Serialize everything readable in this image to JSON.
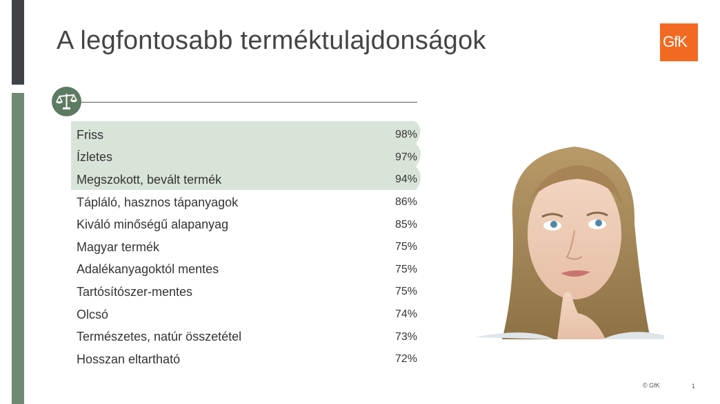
{
  "title": "A legfontosabb terméktulajdonságok",
  "logo_text": "GfK",
  "accent_color": "#f26a22",
  "highlight_color": "#d9e4d9",
  "icon": "balance-scale-icon",
  "rows": [
    {
      "label": "Friss",
      "value": "98%"
    },
    {
      "label": "Ízletes",
      "value": "97%"
    },
    {
      "label": "Megszokott, bevált termék",
      "value": "94%"
    },
    {
      "label": "Tápláló, hasznos tápanyagok",
      "value": "86%"
    },
    {
      "label": "Kiváló minőségű alapanyag",
      "value": "85%"
    },
    {
      "label": "Magyar termék",
      "value": "75%"
    },
    {
      "label": "Adalékanyagoktól mentes",
      "value": "75%"
    },
    {
      "label": "Tartósítószer-mentes",
      "value": "75%"
    },
    {
      "label": "Olcsó",
      "value": "74%"
    },
    {
      "label": "Természetes, natúr összetétel",
      "value": "73%"
    },
    {
      "label": "Hosszan eltartható",
      "value": "72%"
    }
  ],
  "footer": {
    "copyright": "© GfK",
    "page": "1"
  }
}
